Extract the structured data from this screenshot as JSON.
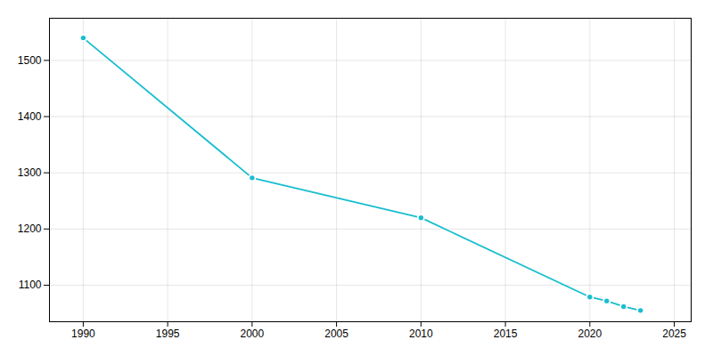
{
  "chart_data": {
    "type": "line",
    "x": [
      1990,
      2000,
      2010,
      2020,
      2021,
      2022,
      2023
    ],
    "values": [
      1540,
      1291,
      1220,
      1079,
      1072,
      1062,
      1055
    ],
    "color": "#17BECF",
    "marker": "circle",
    "xlim": [
      1988,
      2026
    ],
    "ylim": [
      1035,
      1575
    ],
    "xticks": [
      1990,
      1995,
      2000,
      2005,
      2010,
      2015,
      2020,
      2025
    ],
    "yticks": [
      1100,
      1200,
      1300,
      1400,
      1500
    ],
    "grid": true
  }
}
